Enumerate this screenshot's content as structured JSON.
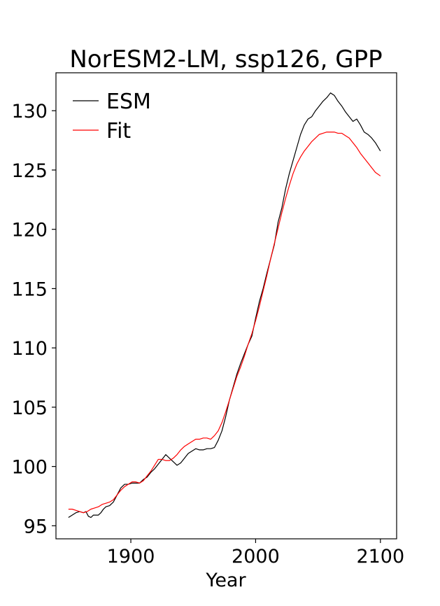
{
  "chart_data": {
    "type": "line",
    "title": "NorESM2-LM, ssp126, GPP",
    "xlabel": "Year",
    "ylabel": "",
    "xlim": [
      1840,
      2113
    ],
    "ylim": [
      93.9,
      133.2
    ],
    "xticks": [
      1900,
      2000,
      2100
    ],
    "yticks": [
      95,
      100,
      105,
      110,
      115,
      120,
      125,
      130
    ],
    "grid": false,
    "legend_position": "top-left",
    "series": [
      {
        "name": "ESM",
        "color": "#000000",
        "points": [
          [
            1850,
            95.7
          ],
          [
            1853,
            95.9
          ],
          [
            1856,
            96.1
          ],
          [
            1859,
            96.2
          ],
          [
            1862,
            96.1
          ],
          [
            1864,
            96.2
          ],
          [
            1866,
            95.8
          ],
          [
            1868,
            95.7
          ],
          [
            1870,
            95.9
          ],
          [
            1872,
            95.9
          ],
          [
            1874,
            95.9
          ],
          [
            1876,
            96.1
          ],
          [
            1878,
            96.4
          ],
          [
            1880,
            96.6
          ],
          [
            1883,
            96.7
          ],
          [
            1886,
            97.0
          ],
          [
            1889,
            97.6
          ],
          [
            1892,
            98.2
          ],
          [
            1895,
            98.5
          ],
          [
            1898,
            98.5
          ],
          [
            1901,
            98.6
          ],
          [
            1904,
            98.6
          ],
          [
            1907,
            98.6
          ],
          [
            1910,
            98.9
          ],
          [
            1913,
            99.1
          ],
          [
            1916,
            99.5
          ],
          [
            1919,
            99.8
          ],
          [
            1922,
            100.2
          ],
          [
            1925,
            100.6
          ],
          [
            1928,
            101.0
          ],
          [
            1931,
            100.7
          ],
          [
            1934,
            100.4
          ],
          [
            1937,
            100.1
          ],
          [
            1940,
            100.3
          ],
          [
            1943,
            100.7
          ],
          [
            1946,
            101.1
          ],
          [
            1949,
            101.3
          ],
          [
            1952,
            101.5
          ],
          [
            1955,
            101.4
          ],
          [
            1958,
            101.4
          ],
          [
            1961,
            101.5
          ],
          [
            1964,
            101.5
          ],
          [
            1967,
            101.6
          ],
          [
            1970,
            102.2
          ],
          [
            1973,
            103.0
          ],
          [
            1976,
            104.2
          ],
          [
            1979,
            105.6
          ],
          [
            1982,
            106.7
          ],
          [
            1985,
            107.8
          ],
          [
            1988,
            108.7
          ],
          [
            1991,
            109.5
          ],
          [
            1994,
            110.3
          ],
          [
            1997,
            111.0
          ],
          [
            2000,
            112.5
          ],
          [
            2003,
            113.9
          ],
          [
            2006,
            115.0
          ],
          [
            2009,
            116.3
          ],
          [
            2012,
            117.5
          ],
          [
            2015,
            118.7
          ],
          [
            2018,
            120.6
          ],
          [
            2021,
            121.8
          ],
          [
            2024,
            123.4
          ],
          [
            2027,
            124.7
          ],
          [
            2030,
            125.8
          ],
          [
            2033,
            126.9
          ],
          [
            2036,
            128.0
          ],
          [
            2039,
            128.8
          ],
          [
            2042,
            129.3
          ],
          [
            2045,
            129.5
          ],
          [
            2048,
            130.0
          ],
          [
            2051,
            130.4
          ],
          [
            2054,
            130.8
          ],
          [
            2057,
            131.1
          ],
          [
            2060,
            131.5
          ],
          [
            2063,
            131.3
          ],
          [
            2066,
            130.8
          ],
          [
            2069,
            130.4
          ],
          [
            2072,
            129.9
          ],
          [
            2075,
            129.5
          ],
          [
            2078,
            129.1
          ],
          [
            2081,
            129.3
          ],
          [
            2084,
            128.8
          ],
          [
            2087,
            128.2
          ],
          [
            2090,
            128.0
          ],
          [
            2093,
            127.7
          ],
          [
            2096,
            127.3
          ],
          [
            2100,
            126.6
          ]
        ]
      },
      {
        "name": "Fit",
        "color": "#ff0000",
        "points": [
          [
            1850,
            96.4
          ],
          [
            1853,
            96.4
          ],
          [
            1856,
            96.3
          ],
          [
            1859,
            96.2
          ],
          [
            1862,
            96.1
          ],
          [
            1865,
            96.2
          ],
          [
            1868,
            96.4
          ],
          [
            1871,
            96.5
          ],
          [
            1874,
            96.6
          ],
          [
            1877,
            96.8
          ],
          [
            1880,
            96.9
          ],
          [
            1883,
            97.0
          ],
          [
            1886,
            97.2
          ],
          [
            1889,
            97.6
          ],
          [
            1892,
            98.0
          ],
          [
            1895,
            98.3
          ],
          [
            1898,
            98.5
          ],
          [
            1901,
            98.7
          ],
          [
            1904,
            98.7
          ],
          [
            1907,
            98.6
          ],
          [
            1910,
            98.8
          ],
          [
            1913,
            99.2
          ],
          [
            1916,
            99.6
          ],
          [
            1919,
            100.1
          ],
          [
            1922,
            100.6
          ],
          [
            1925,
            100.6
          ],
          [
            1928,
            100.5
          ],
          [
            1931,
            100.5
          ],
          [
            1934,
            100.7
          ],
          [
            1937,
            101.0
          ],
          [
            1940,
            101.4
          ],
          [
            1943,
            101.7
          ],
          [
            1946,
            101.9
          ],
          [
            1949,
            102.1
          ],
          [
            1952,
            102.3
          ],
          [
            1955,
            102.3
          ],
          [
            1958,
            102.4
          ],
          [
            1961,
            102.4
          ],
          [
            1964,
            102.3
          ],
          [
            1967,
            102.6
          ],
          [
            1970,
            103.0
          ],
          [
            1973,
            103.7
          ],
          [
            1976,
            104.6
          ],
          [
            1979,
            105.6
          ],
          [
            1982,
            106.6
          ],
          [
            1985,
            107.6
          ],
          [
            1988,
            108.4
          ],
          [
            1991,
            109.3
          ],
          [
            1994,
            110.3
          ],
          [
            1997,
            111.2
          ],
          [
            2000,
            112.3
          ],
          [
            2003,
            113.5
          ],
          [
            2006,
            114.8
          ],
          [
            2009,
            116.1
          ],
          [
            2012,
            117.5
          ],
          [
            2015,
            118.8
          ],
          [
            2018,
            120.1
          ],
          [
            2021,
            121.4
          ],
          [
            2024,
            122.6
          ],
          [
            2027,
            123.7
          ],
          [
            2030,
            124.7
          ],
          [
            2033,
            125.5
          ],
          [
            2036,
            126.1
          ],
          [
            2039,
            126.6
          ],
          [
            2042,
            127.0
          ],
          [
            2045,
            127.4
          ],
          [
            2048,
            127.7
          ],
          [
            2051,
            128.0
          ],
          [
            2054,
            128.1
          ],
          [
            2057,
            128.2
          ],
          [
            2060,
            128.2
          ],
          [
            2063,
            128.2
          ],
          [
            2066,
            128.1
          ],
          [
            2069,
            128.1
          ],
          [
            2072,
            127.9
          ],
          [
            2075,
            127.7
          ],
          [
            2078,
            127.3
          ],
          [
            2081,
            126.9
          ],
          [
            2084,
            126.4
          ],
          [
            2087,
            126.0
          ],
          [
            2090,
            125.6
          ],
          [
            2093,
            125.2
          ],
          [
            2096,
            124.8
          ],
          [
            2100,
            124.5
          ]
        ]
      }
    ]
  }
}
